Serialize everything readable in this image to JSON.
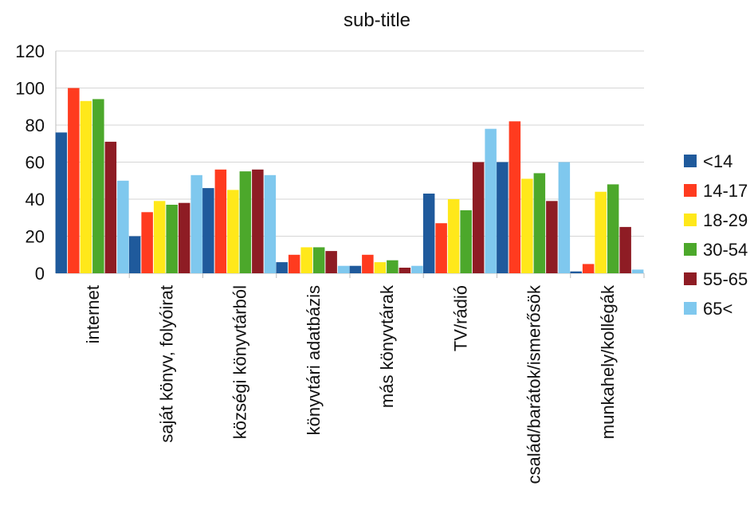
{
  "chart_data": {
    "type": "bar",
    "title": "sub-title",
    "xlabel": "",
    "ylabel": "",
    "ylim": [
      0,
      120
    ],
    "yticks": [
      0,
      20,
      40,
      60,
      80,
      100,
      120
    ],
    "grid": true,
    "legend_position": "right",
    "categories": [
      "internet",
      "saját könyv, folyóirat",
      "községi könyvtárból",
      "könyvtári adatbázis",
      "más könyvtárak",
      "TV/rádió",
      "család/barátok/ismerősök",
      "munkahely/kollégák"
    ],
    "series": [
      {
        "name": "<14",
        "color": "#1f5a9c",
        "values": [
          76,
          20,
          46,
          6,
          4,
          43,
          60,
          1
        ]
      },
      {
        "name": "14-17",
        "color": "#ff3b1f",
        "values": [
          100,
          33,
          56,
          10,
          10,
          27,
          82,
          5
        ]
      },
      {
        "name": "18-29",
        "color": "#ffe81a",
        "values": [
          93,
          39,
          45,
          14,
          6,
          40,
          51,
          44
        ]
      },
      {
        "name": "30-54",
        "color": "#4ca82b",
        "values": [
          94,
          37,
          55,
          14,
          7,
          34,
          54,
          48
        ]
      },
      {
        "name": "55-65",
        "color": "#8e1c24",
        "values": [
          71,
          38,
          56,
          12,
          3,
          60,
          39,
          25
        ]
      },
      {
        "name": "65<",
        "color": "#7fc8ee",
        "values": [
          50,
          53,
          53,
          4,
          4,
          78,
          60,
          2
        ]
      }
    ]
  }
}
